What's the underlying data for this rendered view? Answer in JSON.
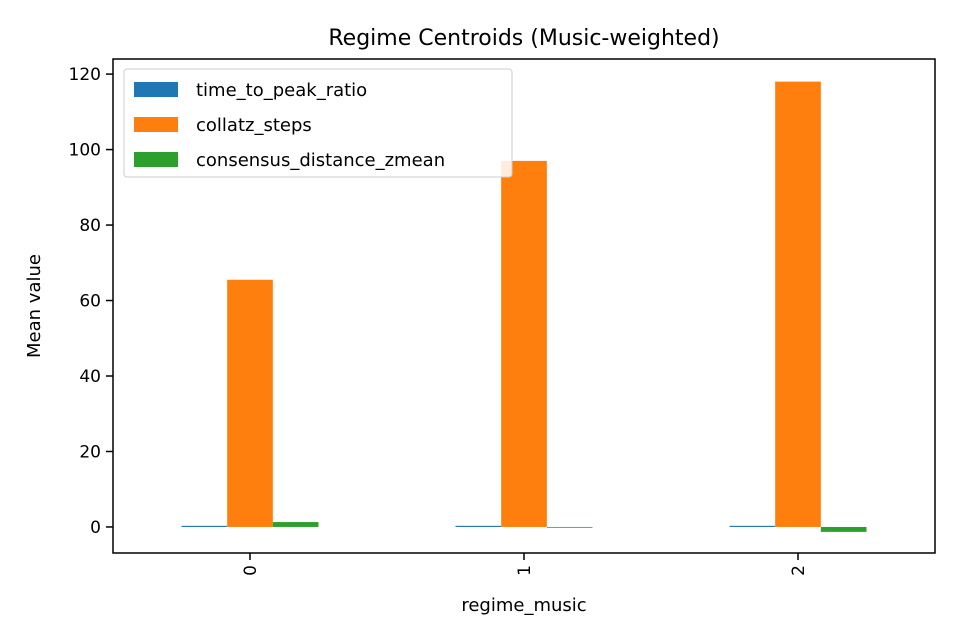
{
  "chart_data": {
    "type": "bar",
    "title": "Regime Centroids (Music-weighted)",
    "xlabel": "regime_music",
    "ylabel": "Mean value",
    "categories": [
      "0",
      "1",
      "2"
    ],
    "series": [
      {
        "name": "time_to_peak_ratio",
        "color": "#1f77b4",
        "values": [
          0.3,
          0.3,
          0.3
        ]
      },
      {
        "name": "collatz_steps",
        "color": "#ff7f0e",
        "values": [
          65.5,
          97.0,
          118.0
        ]
      },
      {
        "name": "consensus_distance_zmean",
        "color": "#2ca02c",
        "values": [
          1.3,
          -0.05,
          -1.3
        ]
      }
    ],
    "ylim": [
      -6.9,
      124.0
    ],
    "yticks": [
      0,
      20,
      40,
      60,
      80,
      100,
      120
    ],
    "ytick_labels": [
      "0",
      "20",
      "40",
      "60",
      "80",
      "100",
      "120"
    ],
    "grid": false,
    "legend_position": "top-left",
    "xtick_rotation": "vertical"
  }
}
